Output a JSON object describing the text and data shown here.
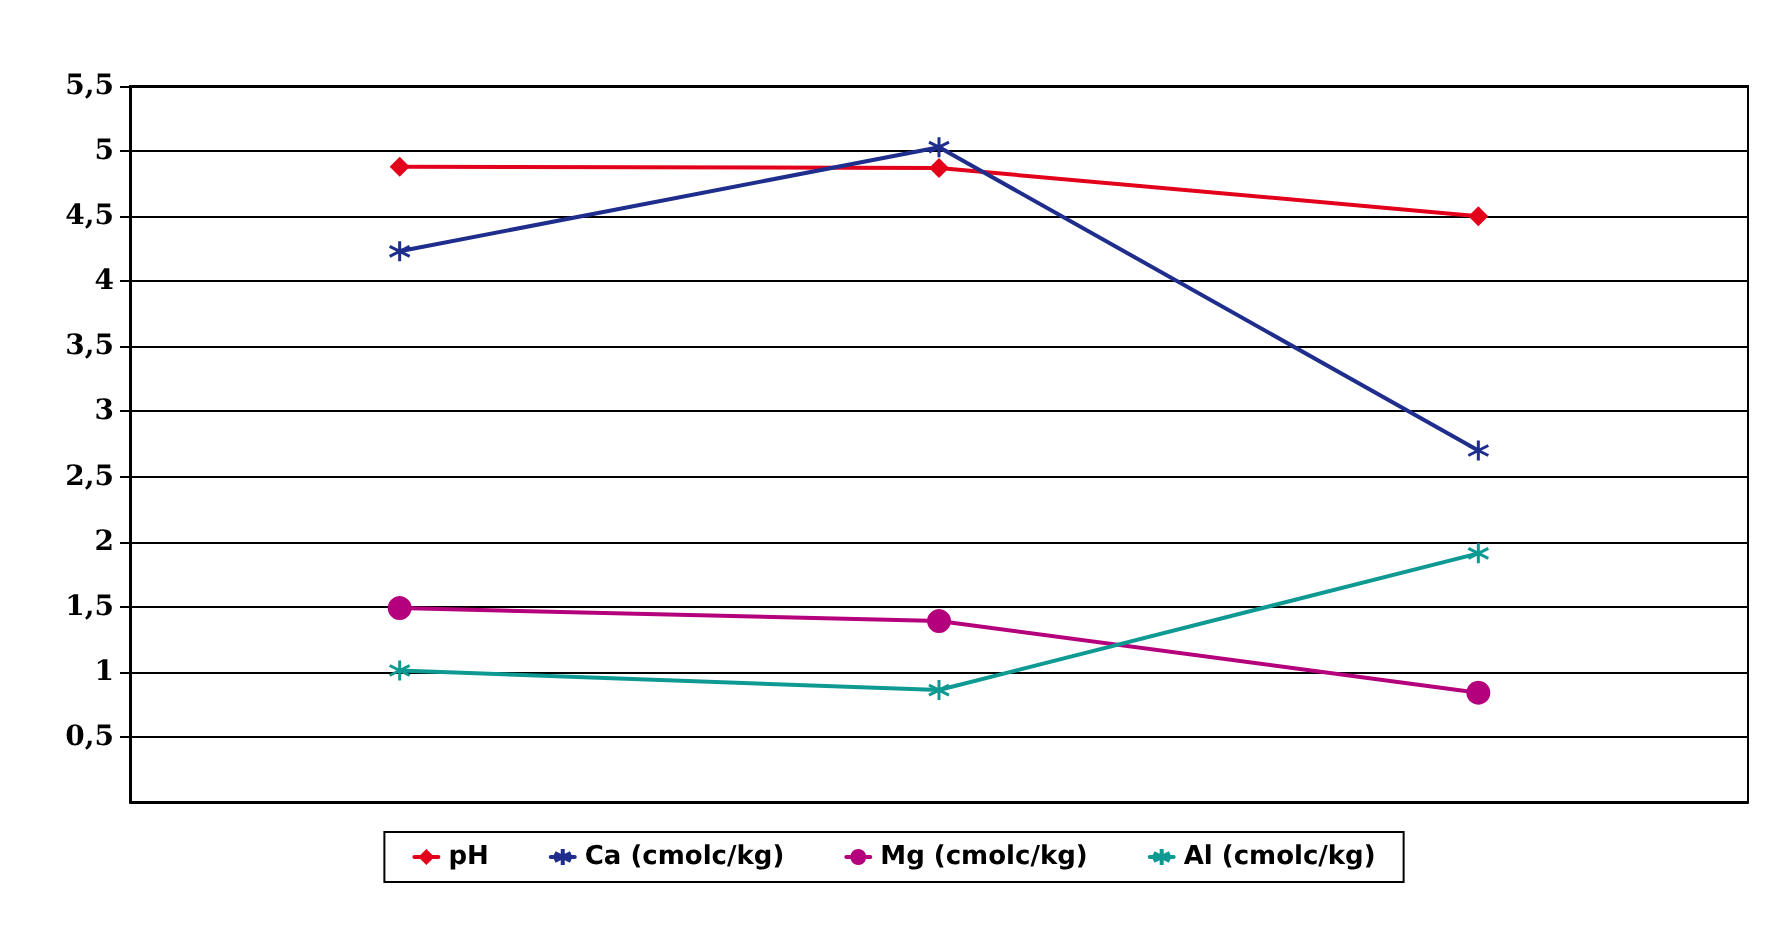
{
  "chart_data": {
    "type": "line",
    "categories": [
      null,
      null,
      null
    ],
    "series": [
      {
        "name": "pH",
        "color": "#e3001b",
        "marker": "diamond",
        "values": [
          4.88,
          4.87,
          4.5
        ]
      },
      {
        "name": "Ca (cmolc/kg)",
        "color": "#1f2e8c",
        "marker": "cross",
        "values": [
          4.23,
          5.03,
          2.7
        ]
      },
      {
        "name": "Mg (cmolc/kg)",
        "color": "#b5007d",
        "marker": "circle",
        "values": [
          1.49,
          1.39,
          0.84
        ]
      },
      {
        "name": "Al (cmolc/kg)",
        "color": "#0e9a93",
        "marker": "cross",
        "values": [
          1.01,
          0.86,
          1.91
        ]
      }
    ],
    "ylim": [
      0,
      5.5
    ],
    "yticks": [
      {
        "value": 0.5,
        "label": "0,5"
      },
      1,
      {
        "value": 1.5,
        "label": "1,5"
      },
      2,
      {
        "value": 2.5,
        "label": "2,5"
      },
      3,
      {
        "value": 3.5,
        "label": "3,5"
      },
      4,
      {
        "value": 4.5,
        "label": "4,5"
      },
      5,
      {
        "value": 5.5,
        "label": "5,5"
      }
    ],
    "grid": "y",
    "legend": "bottom",
    "line_style": "solid"
  }
}
